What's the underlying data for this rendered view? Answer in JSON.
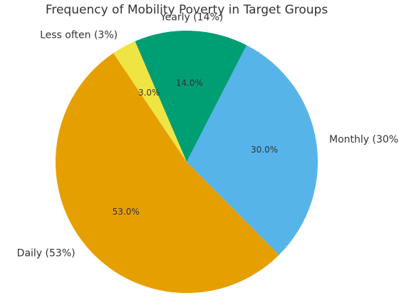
{
  "chart_data": {
    "type": "pie",
    "title": "Frequency of Mobility Poverty in Target Groups",
    "start_angle": 124,
    "direction": "counterclockwise",
    "slices": [
      {
        "label": "Daily (53%)",
        "value": 53,
        "pct_label": "53.0%",
        "color": "#E69F00"
      },
      {
        "label": "Monthly (30%)",
        "value": 30,
        "pct_label": "30.0%",
        "color": "#56B4E9"
      },
      {
        "label": "Yearly (14%)",
        "value": 14,
        "pct_label": "14.0%",
        "color": "#009E73"
      },
      {
        "label": "Less often (3%)",
        "value": 3,
        "pct_label": "3.0%",
        "color": "#F0E442"
      }
    ]
  }
}
